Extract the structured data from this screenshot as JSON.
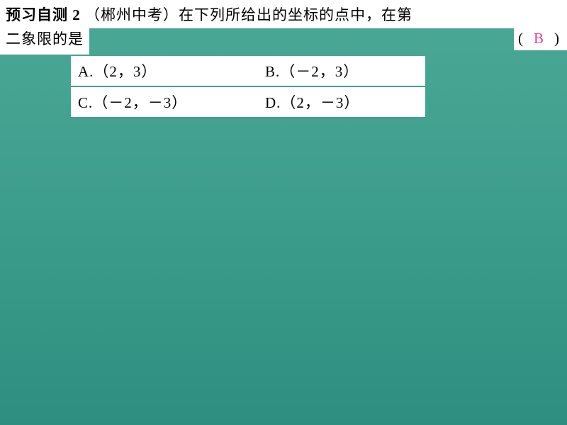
{
  "header": {
    "title": "预习自测 2",
    "source": "（郴州中考）",
    "question_part1": "在下列所给出的坐标的点中，在第",
    "question_part2": "二象限的是"
  },
  "answer": {
    "open_paren": "(",
    "letter": "B",
    "close_paren": ")",
    "color": "#e83e8c"
  },
  "options": {
    "a": {
      "label": "A.",
      "value": "（2，3）"
    },
    "b": {
      "label": "B.",
      "value": "（－2，3）"
    },
    "c": {
      "label": "C.",
      "value": "（－2，－3）"
    },
    "d": {
      "label": "D.",
      "value": "（2，－3）"
    }
  },
  "styling": {
    "background_gradient_top": "#4ba896",
    "background_gradient_bottom": "#2e8f80",
    "text_box_bg": "#ffffff",
    "text_color": "#000000",
    "font_size_main": 21,
    "options_left_margin": 100,
    "options_width": 500
  }
}
